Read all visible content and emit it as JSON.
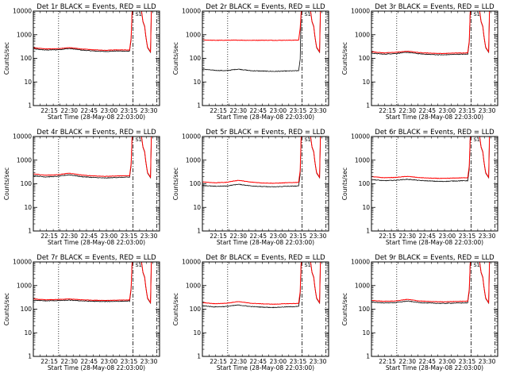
{
  "chart_data": {
    "type": "line",
    "y_scale": "log",
    "ylim": [
      1,
      10000
    ],
    "y_ticks": [
      1,
      10,
      100,
      1000,
      10000
    ],
    "y_tick_labels": [
      "1",
      "10",
      "100",
      "1000",
      "10000"
    ],
    "x_tick_labels": [
      "22:15",
      "22:30",
      "22:45",
      "23:00",
      "23:15",
      "23:30"
    ],
    "x_range_minutes_after_start": [
      0,
      95
    ],
    "x_tick_minutes_after_start": [
      12,
      27,
      42,
      57,
      72,
      87
    ],
    "xlabel": "Start Time (28-May-08 22:03:00)",
    "ylabel": "Counts/sec",
    "marker_label": "S1",
    "vlines_minutes_after_start": {
      "dotted": 19,
      "dash_dot": [
        75,
        93
      ]
    },
    "colors": {
      "events": "#000000",
      "lld": "#ff0000"
    },
    "panels": [
      {
        "title": "Det 1r BLACK = Events, RED = LLD",
        "events": [
          250,
          225,
          230,
          260,
          225,
          205,
          195,
          205,
          200
        ],
        "lld": [
          280,
          250,
          255,
          285,
          250,
          230,
          220,
          230,
          225
        ]
      },
      {
        "title": "Det 2r BLACK = Events, RED = LLD",
        "events": [
          35,
          31,
          30,
          35,
          30,
          29,
          28,
          29,
          30
        ],
        "lld": [
          600,
          580,
          585,
          590,
          580,
          585,
          580,
          585,
          590
        ]
      },
      {
        "title": "Det 3r BLACK = Events, RED = LLD",
        "events": [
          165,
          150,
          160,
          180,
          155,
          145,
          140,
          148,
          150
        ],
        "lld": [
          190,
          170,
          180,
          200,
          175,
          165,
          160,
          168,
          170
        ]
      },
      {
        "title": "Det 4r BLACK = Events, RED = LLD",
        "events": [
          220,
          195,
          205,
          240,
          200,
          185,
          175,
          185,
          190
        ],
        "lld": [
          260,
          230,
          240,
          280,
          235,
          215,
          205,
          215,
          220
        ]
      },
      {
        "title": "Det 5r BLACK = Events, RED = LLD",
        "events": [
          85,
          78,
          80,
          95,
          82,
          76,
          74,
          78,
          80
        ],
        "lld": [
          120,
          110,
          115,
          140,
          118,
          108,
          105,
          110,
          115
        ]
      },
      {
        "title": "Det 6r BLACK = Events, RED = LLD",
        "events": [
          150,
          135,
          140,
          155,
          138,
          130,
          125,
          132,
          135
        ],
        "lld": [
          200,
          180,
          185,
          205,
          182,
          172,
          168,
          175,
          180
        ]
      },
      {
        "title": "Det 7r BLACK = Events, RED = LLD",
        "events": [
          240,
          225,
          230,
          240,
          225,
          215,
          210,
          215,
          220
        ],
        "lld": [
          270,
          250,
          255,
          270,
          250,
          240,
          235,
          240,
          245
        ]
      },
      {
        "title": "Det 8r BLACK = Events, RED = LLD",
        "events": [
          140,
          125,
          130,
          150,
          130,
          122,
          118,
          125,
          130
        ],
        "lld": [
          190,
          170,
          178,
          210,
          178,
          168,
          162,
          170,
          175
        ]
      },
      {
        "title": "Det 9r BLACK = Events, RED = LLD",
        "events": [
          200,
          185,
          190,
          220,
          190,
          180,
          175,
          182,
          185
        ],
        "lld": [
          235,
          215,
          222,
          260,
          222,
          210,
          205,
          212,
          218
        ]
      }
    ]
  }
}
